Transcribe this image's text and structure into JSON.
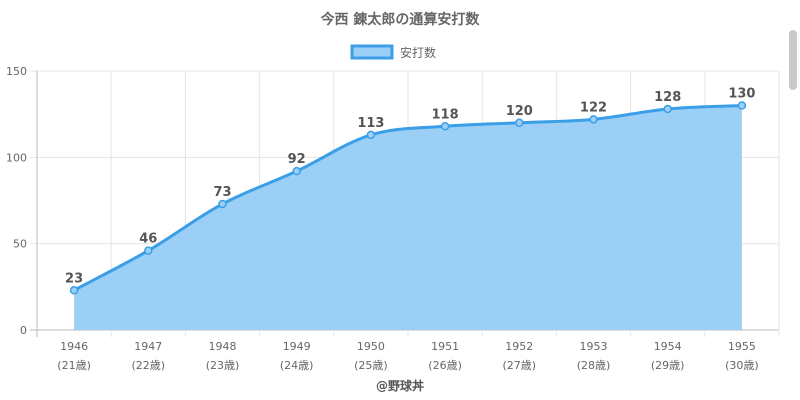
{
  "chart_data": {
    "type": "area",
    "title": "今西 錬太郎の通算安打数",
    "legend_position": "top-center",
    "x": [
      "1946",
      "1947",
      "1948",
      "1949",
      "1950",
      "1951",
      "1952",
      "1953",
      "1954",
      "1955"
    ],
    "x_sublabels": [
      "(21歳)",
      "(22歳)",
      "(23歳)",
      "(24歳)",
      "(25歳)",
      "(26歳)",
      "(27歳)",
      "(28歳)",
      "(29歳)",
      "(30歳)"
    ],
    "series": [
      {
        "name": "安打数",
        "values": [
          23,
          46,
          73,
          92,
          113,
          118,
          120,
          122,
          128,
          130
        ]
      }
    ],
    "ylim": [
      0,
      150
    ],
    "yticks": [
      0,
      50,
      100,
      150
    ],
    "grid": true,
    "colors": {
      "line": "#3a9fe6",
      "fill": "#9ccff5",
      "text": "#666666",
      "label": "#555555",
      "grid": "#e5e5e5"
    }
  },
  "footer": {
    "credit": "@野球丼"
  }
}
